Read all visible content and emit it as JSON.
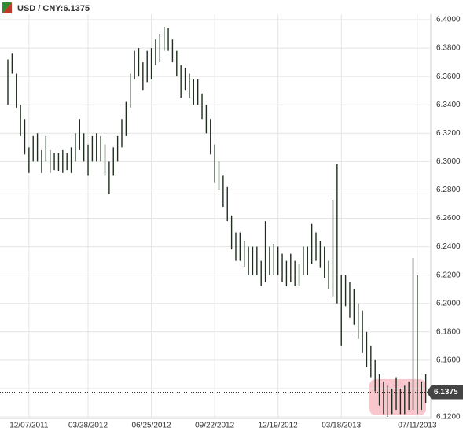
{
  "chart_data": {
    "type": "hilo",
    "title": "USD / CNY:6.1375",
    "last": 6.1375,
    "color": "#1e2e1e",
    "grid": true,
    "categories": [
      null,
      null,
      null,
      null,
      null,
      "12/07/2011",
      null,
      null,
      null,
      null,
      null,
      null,
      null,
      null,
      null,
      null,
      null,
      null,
      null,
      "03/28/2012",
      null,
      null,
      null,
      null,
      null,
      null,
      null,
      null,
      null,
      null,
      null,
      null,
      null,
      null,
      "06/25/2012",
      null,
      null,
      null,
      null,
      null,
      null,
      null,
      null,
      null,
      null,
      null,
      null,
      null,
      null,
      "09/22/2012",
      null,
      null,
      null,
      null,
      null,
      null,
      null,
      null,
      null,
      null,
      null,
      null,
      null,
      null,
      "12/19/2012",
      null,
      null,
      null,
      null,
      null,
      null,
      null,
      null,
      null,
      null,
      null,
      null,
      null,
      null,
      "03/18/2013",
      null,
      null,
      null,
      null,
      null,
      null,
      null,
      null,
      null,
      null,
      null,
      null,
      null,
      null,
      null,
      null,
      null,
      "07/11/2013",
      null,
      null
    ],
    "high": [
      6.372,
      6.376,
      6.362,
      6.34,
      6.33,
      6.31,
      6.318,
      6.32,
      6.308,
      6.318,
      6.308,
      6.306,
      6.306,
      6.308,
      6.306,
      6.31,
      6.32,
      6.33,
      6.32,
      6.312,
      6.318,
      6.32,
      6.318,
      6.312,
      6.3,
      6.31,
      6.318,
      6.33,
      6.342,
      6.362,
      6.378,
      6.38,
      6.37,
      6.378,
      6.38,
      6.386,
      6.39,
      6.395,
      6.394,
      6.386,
      6.378,
      6.368,
      6.366,
      6.362,
      6.358,
      6.358,
      6.348,
      6.34,
      6.33,
      6.312,
      6.3,
      6.29,
      6.282,
      6.262,
      6.25,
      6.25,
      6.244,
      6.24,
      6.24,
      6.24,
      6.23,
      6.258,
      6.24,
      6.242,
      6.24,
      6.235,
      6.23,
      6.235,
      6.23,
      6.228,
      6.24,
      6.24,
      6.256,
      6.25,
      6.244,
      6.24,
      6.23,
      6.273,
      6.298,
      6.22,
      6.22,
      6.215,
      6.21,
      6.2,
      6.195,
      6.18,
      6.17,
      6.16,
      6.15,
      6.145,
      6.142,
      6.14,
      6.148,
      6.14,
      6.142,
      6.145,
      6.232,
      6.22,
      6.145,
      6.15
    ],
    "low": [
      6.34,
      6.362,
      6.338,
      6.318,
      6.305,
      6.292,
      6.3,
      6.3,
      6.292,
      6.3,
      6.292,
      6.294,
      6.293,
      6.292,
      6.294,
      6.292,
      6.3,
      6.308,
      6.3,
      6.29,
      6.3,
      6.3,
      6.3,
      6.29,
      6.277,
      6.29,
      6.3,
      6.31,
      6.318,
      6.338,
      6.358,
      6.36,
      6.35,
      6.356,
      6.358,
      6.368,
      6.37,
      6.378,
      6.378,
      6.37,
      6.36,
      6.345,
      6.35,
      6.345,
      6.34,
      6.34,
      6.33,
      6.32,
      6.305,
      6.285,
      6.28,
      6.268,
      6.258,
      6.238,
      6.23,
      6.23,
      6.226,
      6.22,
      6.22,
      6.22,
      6.212,
      6.215,
      6.22,
      6.22,
      6.22,
      6.215,
      6.212,
      6.215,
      6.212,
      6.212,
      6.22,
      6.22,
      6.228,
      6.23,
      6.225,
      6.218,
      6.21,
      6.205,
      6.2,
      6.17,
      6.198,
      6.19,
      6.185,
      6.175,
      6.165,
      6.155,
      6.148,
      6.138,
      6.128,
      6.122,
      6.12,
      6.122,
      6.125,
      6.122,
      6.122,
      6.125,
      6.125,
      6.122,
      6.125,
      6.13
    ],
    "ylim": [
      6.12,
      6.4
    ],
    "yticks": [
      {
        "value": 6.12,
        "label": "6.1200"
      },
      {
        "value": 6.14,
        "label": "6.1400"
      },
      {
        "value": 6.16,
        "label": "6.1600"
      },
      {
        "value": 6.18,
        "label": "6.1800"
      },
      {
        "value": 6.2,
        "label": "6.2000"
      },
      {
        "value": 6.22,
        "label": "6.2200"
      },
      {
        "value": 6.24,
        "label": "6.2400"
      },
      {
        "value": 6.26,
        "label": "6.2600"
      },
      {
        "value": 6.28,
        "label": "6.2800"
      },
      {
        "value": 6.3,
        "label": "6.3000"
      },
      {
        "value": 6.32,
        "label": "6.3200"
      },
      {
        "value": 6.34,
        "label": "6.3400"
      },
      {
        "value": 6.36,
        "label": "6.3600"
      },
      {
        "value": 6.38,
        "label": "6.3800"
      },
      {
        "value": 6.4,
        "label": "6.4000"
      }
    ]
  }
}
